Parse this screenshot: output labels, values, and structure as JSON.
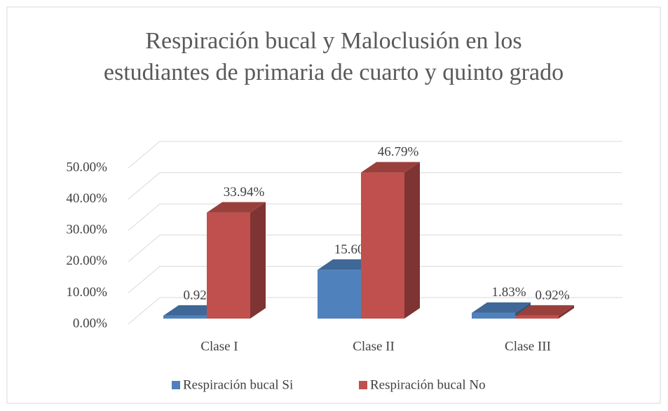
{
  "chart_data": {
    "type": "bar3d",
    "title": "Respiración bucal y Maloclusión en los estudiantes de primaria de cuarto y quinto grado",
    "categories": [
      "Clase I",
      "Clase II",
      "Clase III"
    ],
    "series": [
      {
        "name": "Respiración bucal Si",
        "color": "#4f81bd",
        "values": [
          0.92,
          15.6,
          1.83
        ],
        "value_labels": [
          "0.92%",
          "15.60%",
          "1.83%"
        ]
      },
      {
        "name": "Respiración bucal No",
        "color": "#c0504d",
        "values": [
          33.94,
          46.79,
          0.92
        ],
        "value_labels": [
          "33.94%",
          "46.79%",
          "0.92%"
        ]
      }
    ],
    "ylim": [
      0,
      50
    ],
    "yticks": [
      {
        "value": 0,
        "label": "0.00%"
      },
      {
        "value": 10,
        "label": "10.00%"
      },
      {
        "value": 20,
        "label": "20.00%"
      },
      {
        "value": 30,
        "label": "30.00%"
      },
      {
        "value": 40,
        "label": "40.00%"
      },
      {
        "value": 50,
        "label": "50.00%"
      }
    ],
    "grid": true,
    "legend": "bottom"
  }
}
